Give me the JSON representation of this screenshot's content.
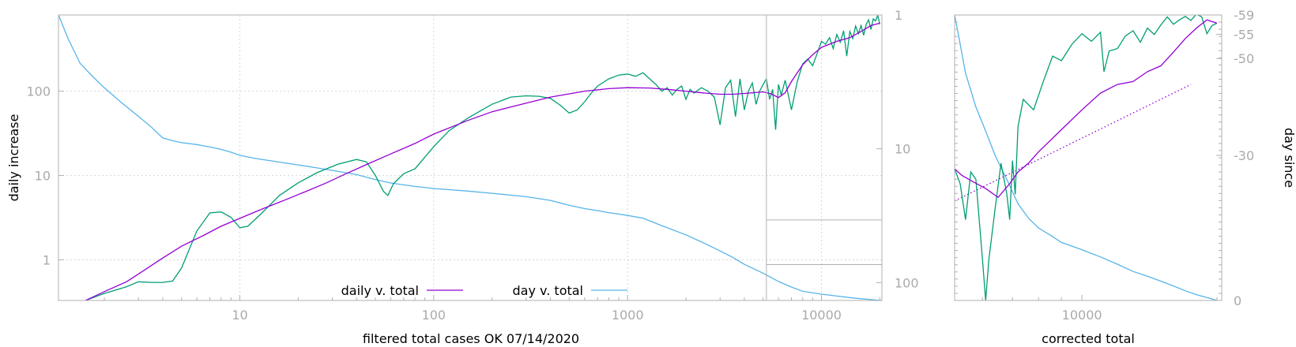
{
  "chart_data": [
    {
      "type": "line",
      "xlabel": "filtered total cases OK 07/14/2020",
      "ylabel": "daily increase",
      "y2label": "",
      "xscale": "log",
      "yscale": "log",
      "y2scale": "log-reversed",
      "xlim": [
        1.16,
        20500
      ],
      "ylim": [
        0.33,
        800
      ],
      "y2lim": [
        1,
        136
      ],
      "grid": true,
      "legend_position": "bottom-center",
      "x_ticks": [
        "10",
        "100",
        "1000",
        "10000"
      ],
      "y_ticks": [
        "1",
        "10",
        "100"
      ],
      "y2_ticks": [
        "1",
        "10",
        "100"
      ],
      "inset_box": {
        "x": [
          5200,
          20500
        ],
        "y": [
          0.33,
          0.88
        ],
        "y_top": 34
      },
      "series": [
        {
          "name": "daily v. total",
          "color": "#9400d3",
          "axis": "y",
          "x": [
            1.6,
            2,
            2.6,
            3.2,
            4,
            5,
            6.5,
            8,
            10,
            13,
            17,
            22,
            28,
            35,
            45,
            60,
            80,
            100,
            150,
            200,
            300,
            400,
            600,
            800,
            1000,
            1300,
            1600,
            2000,
            2500,
            3000,
            3500,
            4000,
            4500,
            5000,
            5500,
            6000,
            6500,
            7000,
            8000,
            9000,
            10000,
            12000,
            14000,
            16000,
            18000,
            20000
          ],
          "y": [
            0.33,
            0.42,
            0.55,
            0.75,
            1.05,
            1.45,
            1.95,
            2.5,
            3.1,
            4,
            5.1,
            6.5,
            8.2,
            10.4,
            13.5,
            18,
            24,
            31,
            45,
            57,
            72,
            85,
            100,
            107,
            110,
            109,
            105,
            100,
            95,
            92,
            92,
            94,
            96,
            98,
            93,
            84,
            96,
            130,
            205,
            270,
            330,
            390,
            430,
            510,
            600,
            640
          ]
        },
        {
          "name": "",
          "color": "#009e73",
          "axis": "y",
          "x": [
            1.6,
            2,
            2.6,
            3,
            3.5,
            4,
            4.5,
            5,
            6,
            7,
            8,
            9,
            10,
            11,
            13,
            16,
            20,
            25,
            32,
            40,
            45,
            50,
            55,
            58,
            62,
            70,
            80,
            100,
            120,
            150,
            200,
            250,
            300,
            350,
            400,
            450,
            500,
            550,
            600,
            650,
            700,
            800,
            900,
            1000,
            1100,
            1200,
            1300,
            1400,
            1500,
            1600,
            1700,
            1800,
            1900,
            2000,
            2100,
            2200,
            2400,
            2600,
            2800,
            3000,
            3200,
            3400,
            3600,
            3800,
            4000,
            4200,
            4400,
            4600,
            4800,
            5000,
            5200,
            5400,
            5600,
            5800,
            6000,
            6200,
            6500,
            7000,
            7500,
            8000,
            8500,
            9000,
            9500,
            10000,
            10500,
            11000,
            11500,
            12000,
            12500,
            13000,
            13500,
            14000,
            14500,
            15000,
            15500,
            16000,
            16500,
            17000,
            17500,
            18000,
            18500,
            19000,
            19500,
            20000
          ],
          "y": [
            0.33,
            0.4,
            0.48,
            0.55,
            0.54,
            0.54,
            0.56,
            0.8,
            2.2,
            3.6,
            3.7,
            3.2,
            2.4,
            2.5,
            3.6,
            5.8,
            8.2,
            10.8,
            13.6,
            15.5,
            14.5,
            10,
            6.5,
            5.8,
            8,
            10.5,
            12,
            22,
            34,
            48,
            70,
            85,
            88,
            87,
            82,
            68,
            55,
            60,
            75,
            95,
            115,
            140,
            155,
            160,
            150,
            165,
            140,
            120,
            100,
            110,
            90,
            105,
            115,
            80,
            105,
            95,
            110,
            100,
            85,
            40,
            110,
            135,
            50,
            140,
            60,
            100,
            125,
            70,
            100,
            120,
            140,
            80,
            105,
            35,
            120,
            90,
            135,
            60,
            130,
            210,
            240,
            200,
            280,
            390,
            360,
            430,
            320,
            470,
            380,
            520,
            260,
            510,
            420,
            590,
            480,
            600,
            460,
            620,
            700,
            540,
            720,
            680,
            790,
            620
          ]
        },
        {
          "name": "day v. total",
          "color": "#56b4e9",
          "axis": "y2",
          "x": [
            1.16,
            1.3,
            1.5,
            1.75,
            2,
            2.4,
            2.9,
            3.5,
            4,
            4.5,
            5,
            6,
            7,
            8,
            9,
            10,
            12,
            15,
            20,
            25,
            30,
            40,
            50,
            60,
            70,
            80,
            100,
            150,
            200,
            300,
            400,
            500,
            600,
            700,
            800,
            1000,
            1200,
            1500,
            2000,
            2500,
            3000,
            3500,
            4000,
            5000,
            6000,
            7000,
            8000,
            10000,
            12000,
            15000,
            18000,
            20500
          ],
          "y": [
            1,
            1.5,
            2.3,
            2.9,
            3.5,
            4.4,
            5.5,
            6.9,
            8.3,
            8.7,
            9,
            9.3,
            9.7,
            10.1,
            10.6,
            11.2,
            11.8,
            12.4,
            13.2,
            13.9,
            14.5,
            15.6,
            17,
            18,
            18.6,
            19.1,
            19.8,
            20.7,
            21.5,
            22.8,
            24.3,
            26.4,
            28,
            29,
            30,
            31.5,
            33,
            37.5,
            44,
            51,
            58,
            65,
            73,
            85,
            98,
            108,
            116,
            122,
            126,
            131,
            134,
            136
          ]
        }
      ]
    },
    {
      "type": "line",
      "xlabel": "corrected total",
      "ylabel": "",
      "y2label": "day since",
      "xscale": "log",
      "y2lim": [
        -59,
        0
      ],
      "x_ticks": [
        "10000"
      ],
      "y2_ticks": [
        "-59",
        "-55",
        "-50",
        "-30",
        "0"
      ],
      "series": [
        {
          "name": "",
          "color": "#9400d3",
          "axis": "y",
          "x": [
            5200,
            5400,
            5700,
            6100,
            6500,
            6900,
            7200,
            7600,
            8000,
            9000,
            10000,
            11000,
            12000,
            13000,
            14000,
            15000,
            16000,
            17000,
            18000,
            19000,
            20000
          ],
          "y": [
            12,
            10,
            8.5,
            7,
            5.5,
            8,
            11,
            14,
            19,
            35,
            60,
            95,
            120,
            130,
            170,
            200,
            290,
            420,
            560,
            700,
            640
          ]
        },
        {
          "name": "",
          "color": "#009e73",
          "x": [
            5200,
            5350,
            5500,
            5650,
            5800,
            6000,
            6100,
            6200,
            6400,
            6600,
            6800,
            6900,
            7000,
            7100,
            7200,
            7400,
            7800,
            8200,
            8600,
            9000,
            9500,
            10000,
            10500,
            11000,
            11200,
            11500,
            12000,
            12500,
            13000,
            13500,
            14000,
            14500,
            15000,
            15500,
            16000,
            16500,
            17000,
            17500,
            18000,
            18500,
            19000,
            19500,
            20000
          ],
          "y": [
            12,
            8,
            3,
            11,
            9,
            1,
            0.33,
            1,
            4,
            14,
            6,
            3,
            15,
            6,
            38,
            80,
            60,
            130,
            260,
            230,
            360,
            480,
            390,
            500,
            170,
            300,
            320,
            450,
            520,
            380,
            560,
            470,
            610,
            760,
            620,
            700,
            770,
            690,
            820,
            760,
            480,
            600,
            640
          ]
        },
        {
          "name": "",
          "color": "#56b4e9",
          "axis": "y2",
          "x": [
            5200,
            5300,
            5500,
            5800,
            6100,
            6400,
            6800,
            7200,
            7600,
            8000,
            8500,
            9000,
            10000,
            11000,
            12000,
            13000,
            14000,
            15000,
            16000,
            17000,
            18000,
            19000,
            20000
          ],
          "y": [
            -59,
            -55,
            -47,
            -40,
            -35,
            -30,
            -25,
            -20,
            -17,
            -15,
            -13.5,
            -12,
            -10.5,
            -9,
            -7.5,
            -6,
            -5,
            -4,
            -3,
            -2,
            -1.2,
            -0.6,
            0
          ]
        },
        {
          "name": "",
          "color": "#9400d3",
          "style": "dotted",
          "x": [
            5200,
            17500
          ],
          "y": [
            5,
            120
          ]
        }
      ]
    }
  ]
}
